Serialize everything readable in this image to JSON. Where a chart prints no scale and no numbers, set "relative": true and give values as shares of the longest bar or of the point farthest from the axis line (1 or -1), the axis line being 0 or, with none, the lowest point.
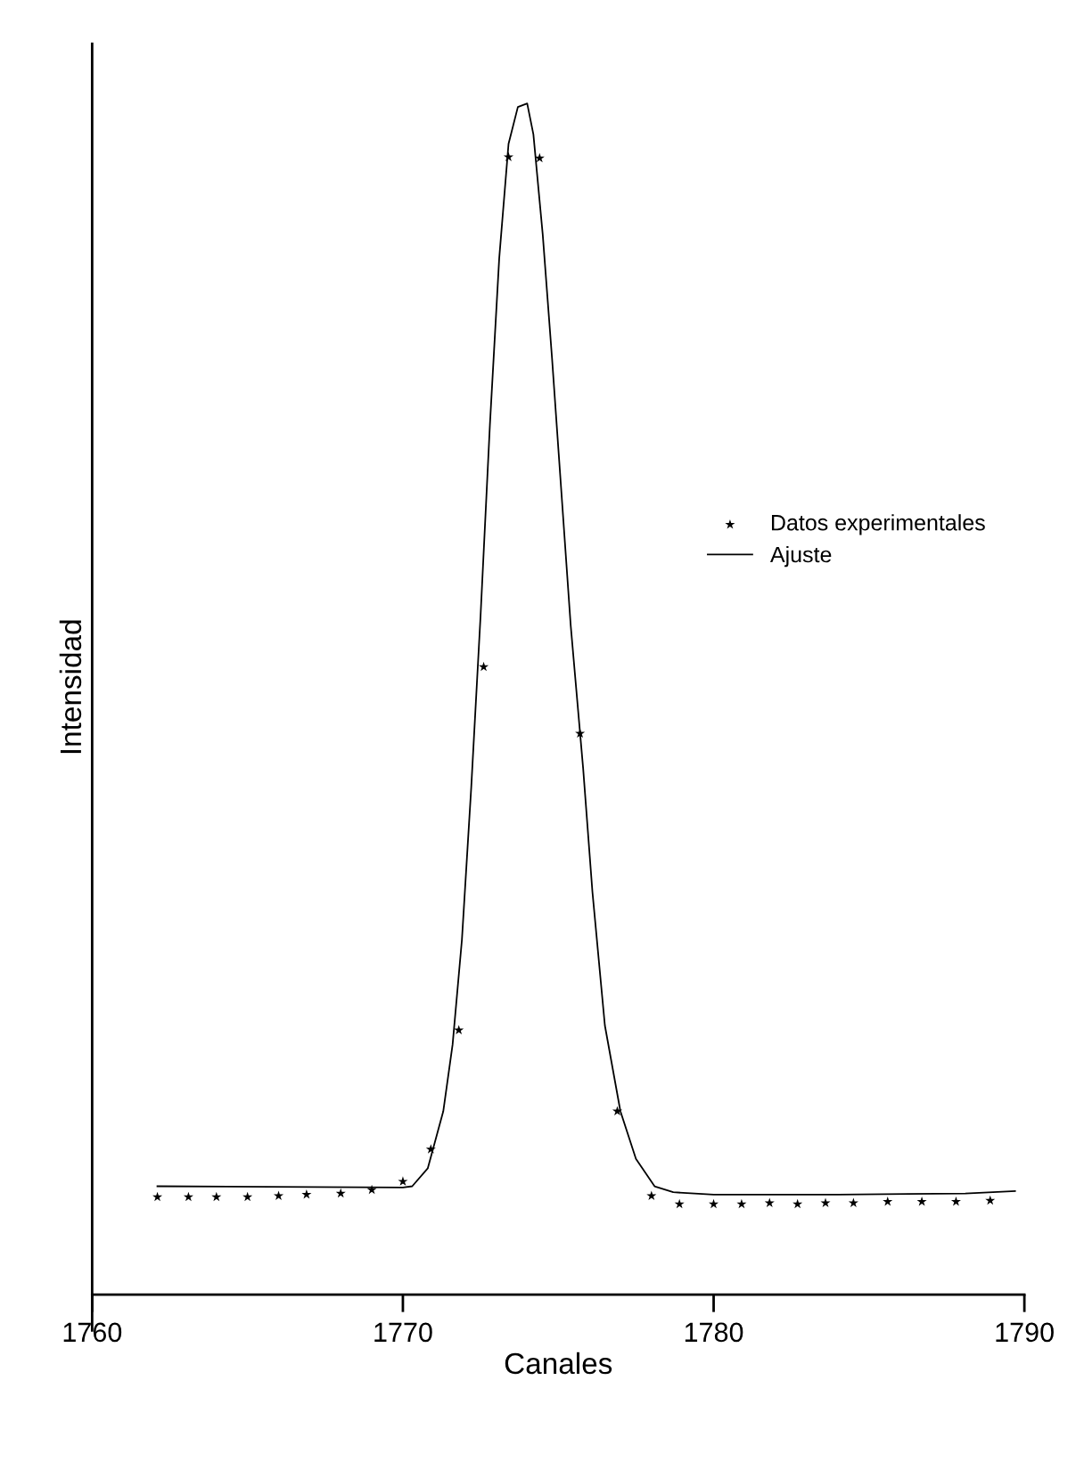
{
  "chart_data": {
    "type": "line",
    "xlabel": "Canales",
    "ylabel": "Intensidad",
    "relative": true,
    "xlim": [
      1760,
      1790
    ],
    "xticks": [
      1760,
      1770,
      1780,
      1790
    ],
    "grid": false,
    "legend": "top right",
    "series": [
      {
        "name": "Datos experimentales",
        "type": "scatter",
        "marker": "star",
        "color": "#000000",
        "x": [
          1762.1,
          1763.1,
          1764.0,
          1765.0,
          1766.0,
          1766.9,
          1768.0,
          1769.0,
          1770.0,
          1770.9,
          1771.8,
          1772.6,
          1773.4,
          1774.4,
          1775.7,
          1776.9,
          1778.0,
          1778.9,
          1780.0,
          1780.9,
          1781.8,
          1782.7,
          1783.6,
          1784.5,
          1785.6,
          1786.7,
          1787.8,
          1788.9
        ],
        "values": [
          0.082,
          0.082,
          0.082,
          0.082,
          0.083,
          0.084,
          0.085,
          0.088,
          0.095,
          0.122,
          0.222,
          0.527,
          0.955,
          0.954,
          0.471,
          0.154,
          0.083,
          0.076,
          0.076,
          0.076,
          0.077,
          0.076,
          0.077,
          0.077,
          0.078,
          0.078,
          0.078,
          0.079
        ]
      },
      {
        "name": "Ajuste",
        "marker": "none",
        "line_style": "solid",
        "color": "#000000",
        "x": [
          1762.1,
          1770.0,
          1770.3,
          1770.8,
          1771.3,
          1771.6,
          1771.9,
          1772.2,
          1772.5,
          1772.8,
          1773.1,
          1773.4,
          1773.7,
          1774.0,
          1774.2,
          1774.5,
          1774.8,
          1775.1,
          1775.4,
          1775.8,
          1776.1,
          1776.5,
          1777.0,
          1777.5,
          1778.1,
          1778.7,
          1780.0,
          1784.0,
          1788.1,
          1789.7
        ],
        "values": [
          0.091,
          0.09,
          0.091,
          0.106,
          0.154,
          0.21,
          0.298,
          0.426,
          0.57,
          0.73,
          0.87,
          0.966,
          0.997,
          1.0,
          0.974,
          0.89,
          0.786,
          0.674,
          0.562,
          0.442,
          0.338,
          0.226,
          0.154,
          0.114,
          0.091,
          0.086,
          0.084,
          0.084,
          0.085,
          0.087
        ]
      }
    ]
  }
}
